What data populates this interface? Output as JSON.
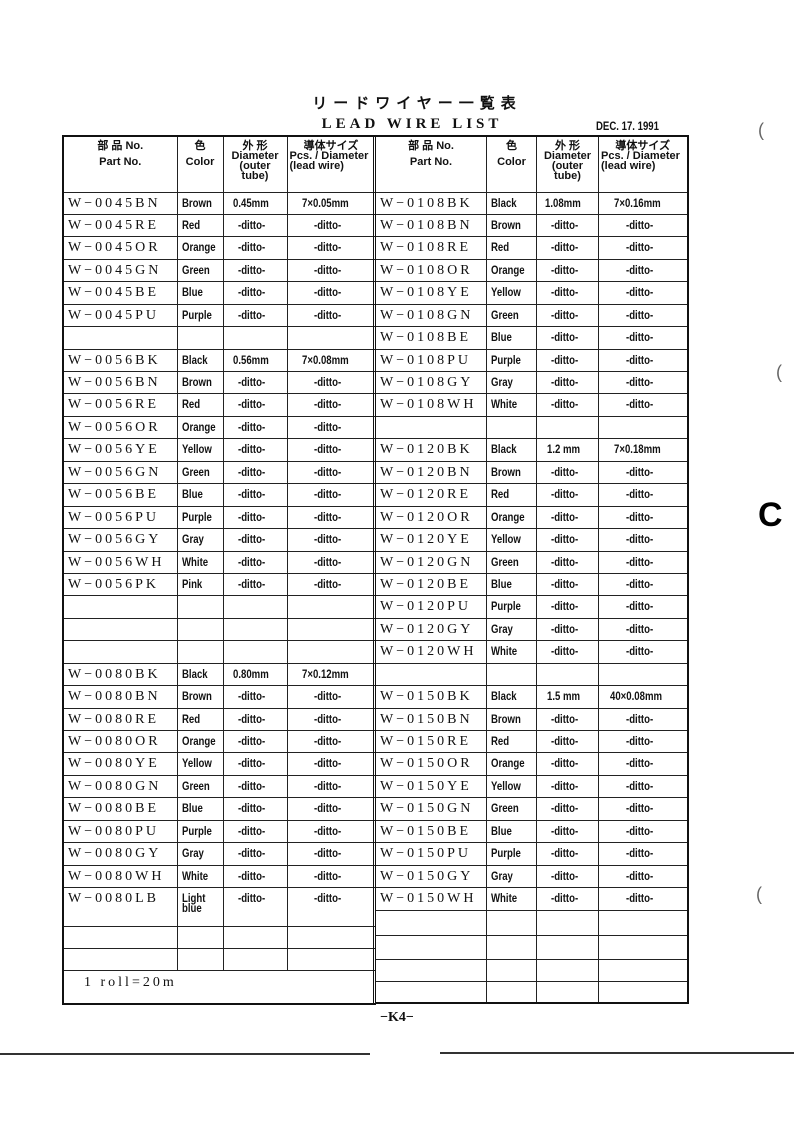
{
  "title_jp": "リードワイヤー一覧表",
  "title_en": "LEAD WIRE LIST",
  "date": "DEC. 17. 1991",
  "headers": {
    "part_jp": "部 品 No.",
    "part_en": "Part No.",
    "color_jp": "色",
    "color_en": "Color",
    "dia_jp": "外 形",
    "dia_en": "Diameter (outer tube)",
    "pcs_jp": "導体サイズ",
    "pcs_en": "Pcs. / Diameter (lead wire)"
  },
  "left_rows": [
    [
      "W−0045BN",
      "Brown",
      "0.45mm",
      "7×0.05mm"
    ],
    [
      "W−0045RE",
      "Red",
      "-ditto-",
      "-ditto-"
    ],
    [
      "W−0045OR",
      "Orange",
      "-ditto-",
      "-ditto-"
    ],
    [
      "W−0045GN",
      "Green",
      "-ditto-",
      "-ditto-"
    ],
    [
      "W−0045BE",
      "Blue",
      "-ditto-",
      "-ditto-"
    ],
    [
      "W−0045PU",
      "Purple",
      "-ditto-",
      "-ditto-"
    ],
    [
      "",
      "",
      "",
      ""
    ],
    [
      "W−0056BK",
      "Black",
      "0.56mm",
      "7×0.08mm"
    ],
    [
      "W−0056BN",
      "Brown",
      "-ditto-",
      "-ditto-"
    ],
    [
      "W−0056RE",
      "Red",
      "-ditto-",
      "-ditto-"
    ],
    [
      "W−0056OR",
      "Orange",
      "-ditto-",
      "-ditto-"
    ],
    [
      "W−0056YE",
      "Yellow",
      "-ditto-",
      "-ditto-"
    ],
    [
      "W−0056GN",
      "Green",
      "-ditto-",
      "-ditto-"
    ],
    [
      "W−0056BE",
      "Blue",
      "-ditto-",
      "-ditto-"
    ],
    [
      "W−0056PU",
      "Purple",
      "-ditto-",
      "-ditto-"
    ],
    [
      "W−0056GY",
      "Gray",
      "-ditto-",
      "-ditto-"
    ],
    [
      "W−0056WH",
      "White",
      "-ditto-",
      "-ditto-"
    ],
    [
      "W−0056PK",
      "Pink",
      "-ditto-",
      "-ditto-"
    ],
    [
      "",
      "",
      "",
      ""
    ],
    [
      "",
      "",
      "",
      ""
    ],
    [
      "",
      "",
      "",
      ""
    ],
    [
      "W−0080BK",
      "Black",
      "0.80mm",
      "7×0.12mm"
    ],
    [
      "W−0080BN",
      "Brown",
      "-ditto-",
      "-ditto-"
    ],
    [
      "W−0080RE",
      "Red",
      "-ditto-",
      "-ditto-"
    ],
    [
      "W−0080OR",
      "Orange",
      "-ditto-",
      "-ditto-"
    ],
    [
      "W−0080YE",
      "Yellow",
      "-ditto-",
      "-ditto-"
    ],
    [
      "W−0080GN",
      "Green",
      "-ditto-",
      "-ditto-"
    ],
    [
      "W−0080BE",
      "Blue",
      "-ditto-",
      "-ditto-"
    ],
    [
      "W−0080PU",
      "Purple",
      "-ditto-",
      "-ditto-"
    ],
    [
      "W−0080GY",
      "Gray",
      "-ditto-",
      "-ditto-"
    ],
    [
      "W−0080WH",
      "White",
      "-ditto-",
      "-ditto-"
    ],
    [
      "W−0080LB",
      "Light blue",
      "-ditto-",
      "-ditto-"
    ],
    [
      "",
      "",
      "",
      ""
    ],
    [
      "",
      "",
      "",
      ""
    ]
  ],
  "right_rows": [
    [
      "W−0108BK",
      "Black",
      "1.08mm",
      "7×0.16mm"
    ],
    [
      "W−0108BN",
      "Brown",
      "-ditto-",
      "-ditto-"
    ],
    [
      "W−0108RE",
      "Red",
      "-ditto-",
      "-ditto-"
    ],
    [
      "W−0108OR",
      "Orange",
      "-ditto-",
      "-ditto-"
    ],
    [
      "W−0108YE",
      "Yellow",
      "-ditto-",
      "-ditto-"
    ],
    [
      "W−0108GN",
      "Green",
      "-ditto-",
      "-ditto-"
    ],
    [
      "W−0108BE",
      "Blue",
      "-ditto-",
      "-ditto-"
    ],
    [
      "W−0108PU",
      "Purple",
      "-ditto-",
      "-ditto-"
    ],
    [
      "W−0108GY",
      "Gray",
      "-ditto-",
      "-ditto-"
    ],
    [
      "W−0108WH",
      "White",
      "-ditto-",
      "-ditto-"
    ],
    [
      "",
      "",
      "",
      ""
    ],
    [
      "W−0120BK",
      "Black",
      "1.2 mm",
      "7×0.18mm"
    ],
    [
      "W−0120BN",
      "Brown",
      "-ditto-",
      "-ditto-"
    ],
    [
      "W−0120RE",
      "Red",
      "-ditto-",
      "-ditto-"
    ],
    [
      "W−0120OR",
      "Orange",
      "-ditto-",
      "-ditto-"
    ],
    [
      "W−0120YE",
      "Yellow",
      "-ditto-",
      "-ditto-"
    ],
    [
      "W−0120GN",
      "Green",
      "-ditto-",
      "-ditto-"
    ],
    [
      "W−0120BE",
      "Blue",
      "-ditto-",
      "-ditto-"
    ],
    [
      "W−0120PU",
      "Purple",
      "-ditto-",
      "-ditto-"
    ],
    [
      "W−0120GY",
      "Gray",
      "-ditto-",
      "-ditto-"
    ],
    [
      "W−0120WH",
      "White",
      "-ditto-",
      "-ditto-"
    ],
    [
      "",
      "",
      "",
      ""
    ],
    [
      "W−0150BK",
      "Black",
      "1.5 mm",
      "40×0.08mm"
    ],
    [
      "W−0150BN",
      "Brown",
      "-ditto-",
      "-ditto-"
    ],
    [
      "W−0150RE",
      "Red",
      "-ditto-",
      "-ditto-"
    ],
    [
      "W−0150OR",
      "Orange",
      "-ditto-",
      "-ditto-"
    ],
    [
      "W−0150YE",
      "Yellow",
      "-ditto-",
      "-ditto-"
    ],
    [
      "W−0150GN",
      "Green",
      "-ditto-",
      "-ditto-"
    ],
    [
      "W−0150BE",
      "Blue",
      "-ditto-",
      "-ditto-"
    ],
    [
      "W−0150PU",
      "Purple",
      "-ditto-",
      "-ditto-"
    ],
    [
      "W−0150GY",
      "Gray",
      "-ditto-",
      "-ditto-"
    ],
    [
      "W−0150WH",
      "White",
      "-ditto-",
      "-ditto-"
    ],
    [
      "",
      "",
      "",
      ""
    ],
    [
      "",
      "",
      "",
      ""
    ],
    [
      "",
      "",
      "",
      ""
    ],
    [
      "",
      "",
      "",
      ""
    ]
  ],
  "note": "1 roll=20m",
  "page_number": "−K4−"
}
